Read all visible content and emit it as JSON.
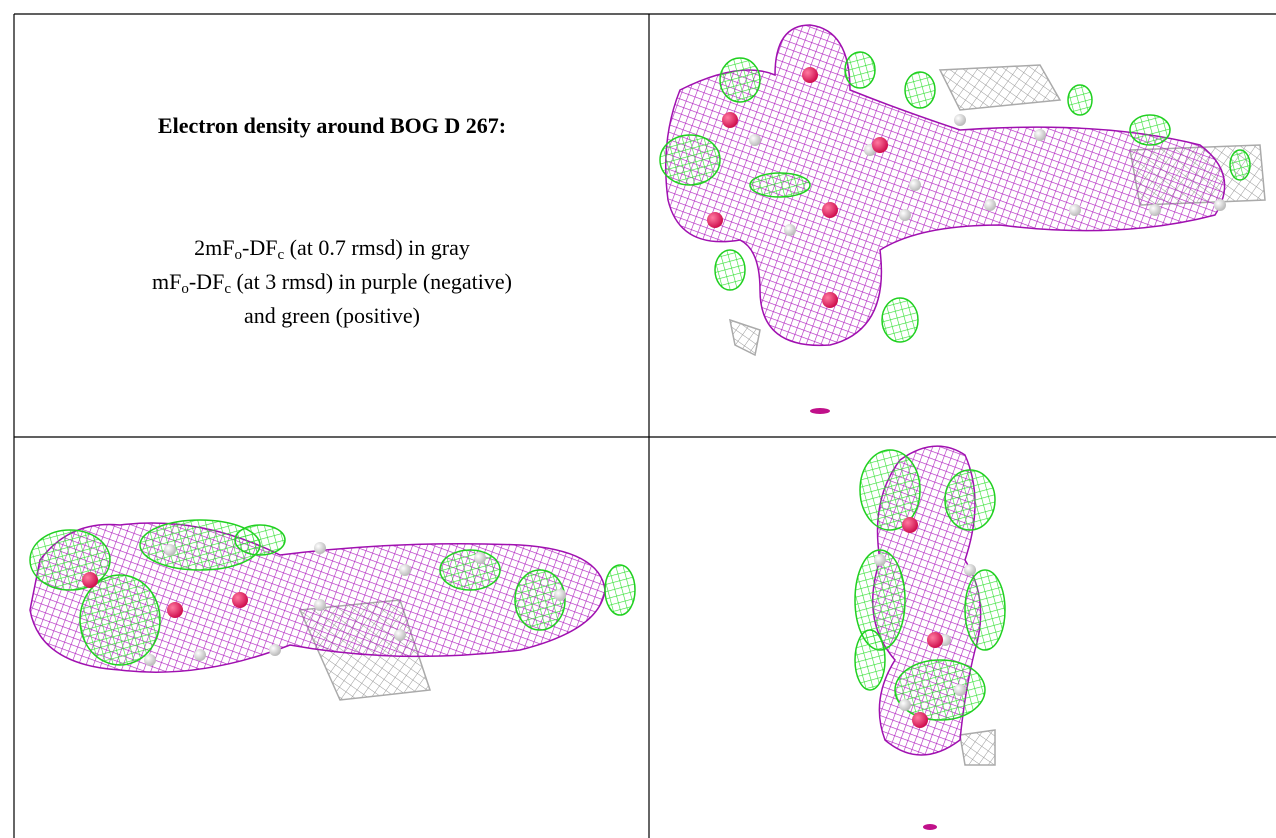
{
  "document": {
    "title": "Electron density around BOG D 267:",
    "legend": {
      "line1": {
        "prefix": "2mF",
        "sub1": "o",
        "mid": "-DF",
        "sub2": "c",
        "suffix": " (at 0.7 rmsd) in gray"
      },
      "line2": {
        "prefix": "mF",
        "sub1": "o",
        "mid": "-DF",
        "sub2": "c",
        "suffix": " (at 3 rmsd) in purple (negative)"
      },
      "line3": "and green (positive)"
    }
  }
}
